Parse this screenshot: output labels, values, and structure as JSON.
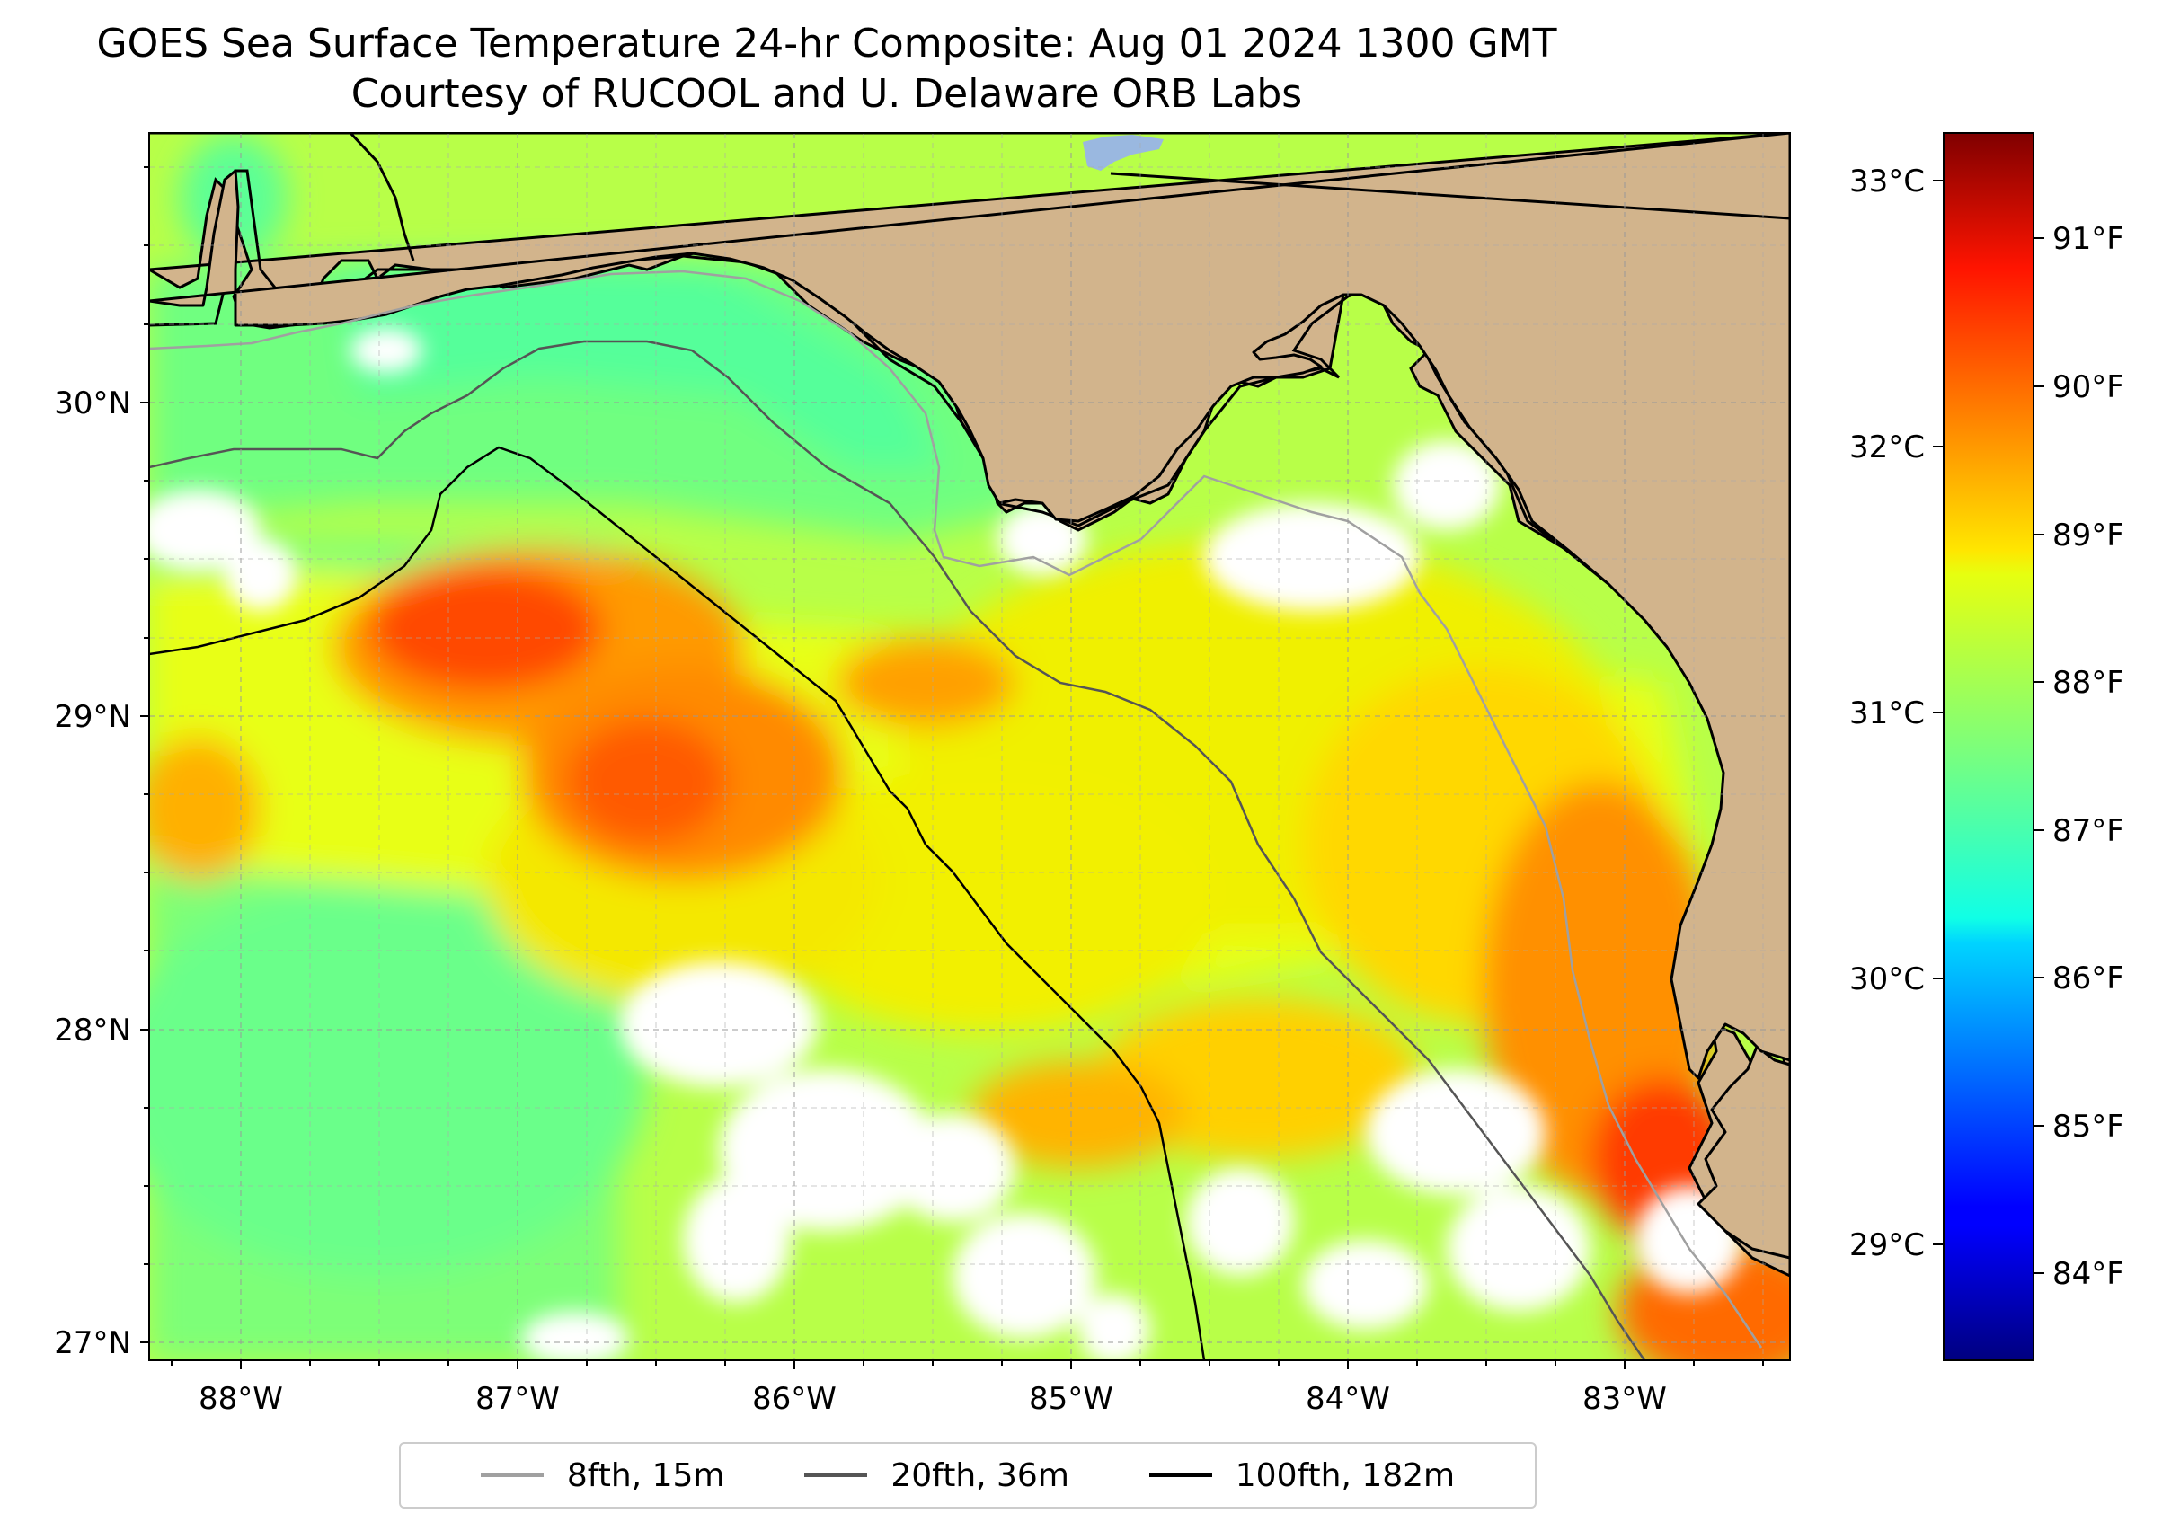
{
  "title": "GOES Sea Surface Temperature 24-hr Composite: Aug 01 2024 1300 GMT",
  "subtitle": "Courtesy of RUCOOL and U. Delaware ORB Labs",
  "map": {
    "lon_range": [
      -88.33,
      -82.4
    ],
    "lat_range": [
      26.93,
      30.83
    ],
    "lat_ticks": [
      "30°N",
      "29°N",
      "28°N",
      "27°N"
    ],
    "lon_ticks": [
      "88°W",
      "87°W",
      "86°W",
      "85°W",
      "84°W",
      "83°W"
    ],
    "land_color": "#d2b48c",
    "cloud_color": "#ffffff",
    "gridlines": true
  },
  "colorbar": {
    "colormap": "jet",
    "range_F": [
      83.3,
      91.6
    ],
    "f_ticks": [
      "91°F",
      "90°F",
      "89°F",
      "88°F",
      "87°F",
      "86°F",
      "85°F",
      "84°F"
    ],
    "c_ticks": [
      "33°C",
      "32°C",
      "31°C",
      "30°C",
      "29°C"
    ]
  },
  "legend": [
    {
      "label": "8fth, 15m",
      "color": "#a0a0a0"
    },
    {
      "label": "20fth, 36m",
      "color": "#555555"
    },
    {
      "label": "100fth, 182m",
      "color": "#000000"
    }
  ]
}
